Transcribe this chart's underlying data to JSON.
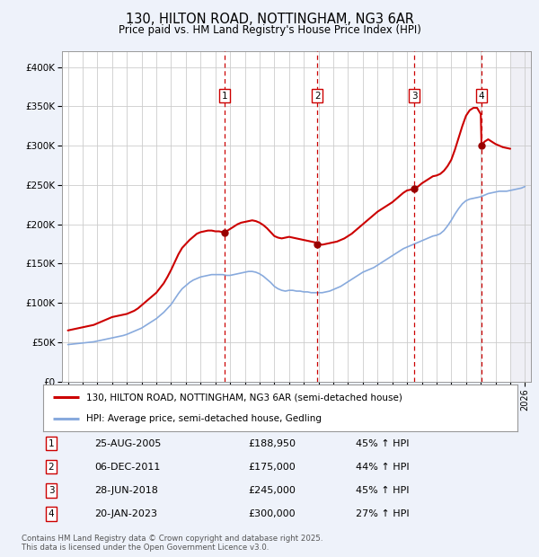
{
  "title": "130, HILTON ROAD, NOTTINGHAM, NG3 6AR",
  "subtitle": "Price paid vs. HM Land Registry's House Price Index (HPI)",
  "legend_line1": "130, HILTON ROAD, NOTTINGHAM, NG3 6AR (semi-detached house)",
  "legend_line2": "HPI: Average price, semi-detached house, Gedling",
  "footer_line1": "Contains HM Land Registry data © Crown copyright and database right 2025.",
  "footer_line2": "This data is licensed under the Open Government Licence v3.0.",
  "xlim": [
    1994.6,
    2026.4
  ],
  "ylim": [
    0,
    420000
  ],
  "yticks": [
    0,
    50000,
    100000,
    150000,
    200000,
    250000,
    300000,
    350000,
    400000
  ],
  "ytick_labels": [
    "£0",
    "£50K",
    "£100K",
    "£150K",
    "£200K",
    "£250K",
    "£300K",
    "£350K",
    "£400K"
  ],
  "background_color": "#eef2fa",
  "plot_bg_color": "#ffffff",
  "grid_color": "#cccccc",
  "transactions": [
    {
      "num": 1,
      "date": "25-AUG-2005",
      "price": "£188,950",
      "change": "45% ↑ HPI",
      "year": 2005.65
    },
    {
      "num": 2,
      "date": "06-DEC-2011",
      "price": "£175,000",
      "change": "44% ↑ HPI",
      "year": 2011.92
    },
    {
      "num": 3,
      "date": "28-JUN-2018",
      "price": "£245,000",
      "change": "45% ↑ HPI",
      "year": 2018.49
    },
    {
      "num": 4,
      "date": "20-JAN-2023",
      "price": "£300,000",
      "change": "27% ↑ HPI",
      "year": 2023.05
    }
  ],
  "red_line_color": "#cc0000",
  "blue_line_color": "#88aadd",
  "sale_dot_color": "#990000",
  "marker_box_color": "#cc0000",
  "vline_color": "#cc0000",
  "future_shade_start": 2025.0,
  "red_data_x": [
    1995.0,
    1995.25,
    1995.5,
    1995.75,
    1996.0,
    1996.25,
    1996.5,
    1996.75,
    1997.0,
    1997.25,
    1997.5,
    1997.75,
    1998.0,
    1998.25,
    1998.5,
    1998.75,
    1999.0,
    1999.25,
    1999.5,
    1999.75,
    2000.0,
    2000.25,
    2000.5,
    2000.75,
    2001.0,
    2001.25,
    2001.5,
    2001.75,
    2002.0,
    2002.25,
    2002.5,
    2002.75,
    2003.0,
    2003.25,
    2003.5,
    2003.75,
    2004.0,
    2004.25,
    2004.5,
    2004.75,
    2005.0,
    2005.25,
    2005.5,
    2005.65,
    2005.75,
    2006.0,
    2006.25,
    2006.5,
    2006.75,
    2007.0,
    2007.25,
    2007.5,
    2007.75,
    2008.0,
    2008.25,
    2008.5,
    2008.75,
    2009.0,
    2009.25,
    2009.5,
    2009.75,
    2010.0,
    2010.25,
    2010.5,
    2010.75,
    2011.0,
    2011.25,
    2011.5,
    2011.75,
    2011.92,
    2012.0,
    2012.25,
    2012.5,
    2012.75,
    2013.0,
    2013.25,
    2013.5,
    2013.75,
    2014.0,
    2014.25,
    2014.5,
    2014.75,
    2015.0,
    2015.25,
    2015.5,
    2015.75,
    2016.0,
    2016.25,
    2016.5,
    2016.75,
    2017.0,
    2017.25,
    2017.5,
    2017.75,
    2018.0,
    2018.25,
    2018.49,
    2018.5,
    2018.75,
    2019.0,
    2019.25,
    2019.5,
    2019.75,
    2020.0,
    2020.25,
    2020.5,
    2020.75,
    2021.0,
    2021.25,
    2021.5,
    2021.75,
    2022.0,
    2022.25,
    2022.5,
    2022.75,
    2023.0,
    2023.05,
    2023.25,
    2023.5,
    2023.75,
    2024.0,
    2024.25,
    2024.5,
    2024.75,
    2025.0
  ],
  "red_data_y": [
    65000,
    66000,
    67000,
    68000,
    69000,
    70000,
    71000,
    72000,
    74000,
    76000,
    78000,
    80000,
    82000,
    83000,
    84000,
    85000,
    86000,
    88000,
    90000,
    93000,
    97000,
    101000,
    105000,
    109000,
    113000,
    119000,
    125000,
    133000,
    142000,
    152000,
    162000,
    170000,
    175000,
    180000,
    184000,
    188000,
    190000,
    191000,
    192000,
    192000,
    191000,
    191000,
    190000,
    188950,
    191000,
    194000,
    197000,
    200000,
    202000,
    203000,
    204000,
    205000,
    204000,
    202000,
    199000,
    195000,
    190000,
    185000,
    183000,
    182000,
    183000,
    184000,
    183000,
    182000,
    181000,
    180000,
    179000,
    178000,
    177000,
    175000,
    175000,
    174000,
    175000,
    176000,
    177000,
    178000,
    180000,
    182000,
    185000,
    188000,
    192000,
    196000,
    200000,
    204000,
    208000,
    212000,
    216000,
    219000,
    222000,
    225000,
    228000,
    232000,
    236000,
    240000,
    243000,
    244000,
    245000,
    245500,
    248000,
    252000,
    255000,
    258000,
    261000,
    262000,
    264000,
    268000,
    274000,
    282000,
    295000,
    310000,
    325000,
    338000,
    345000,
    348000,
    348000,
    340000,
    300000,
    305000,
    308000,
    305000,
    302000,
    300000,
    298000,
    297000,
    296000
  ],
  "blue_data_x": [
    1995.0,
    1995.25,
    1995.5,
    1995.75,
    1996.0,
    1996.25,
    1996.5,
    1996.75,
    1997.0,
    1997.25,
    1997.5,
    1997.75,
    1998.0,
    1998.25,
    1998.5,
    1998.75,
    1999.0,
    1999.25,
    1999.5,
    1999.75,
    2000.0,
    2000.25,
    2000.5,
    2000.75,
    2001.0,
    2001.25,
    2001.5,
    2001.75,
    2002.0,
    2002.25,
    2002.5,
    2002.75,
    2003.0,
    2003.25,
    2003.5,
    2003.75,
    2004.0,
    2004.25,
    2004.5,
    2004.75,
    2005.0,
    2005.25,
    2005.5,
    2005.75,
    2006.0,
    2006.25,
    2006.5,
    2006.75,
    2007.0,
    2007.25,
    2007.5,
    2007.75,
    2008.0,
    2008.25,
    2008.5,
    2008.75,
    2009.0,
    2009.25,
    2009.5,
    2009.75,
    2010.0,
    2010.25,
    2010.5,
    2010.75,
    2011.0,
    2011.25,
    2011.5,
    2011.75,
    2012.0,
    2012.25,
    2012.5,
    2012.75,
    2013.0,
    2013.25,
    2013.5,
    2013.75,
    2014.0,
    2014.25,
    2014.5,
    2014.75,
    2015.0,
    2015.25,
    2015.5,
    2015.75,
    2016.0,
    2016.25,
    2016.5,
    2016.75,
    2017.0,
    2017.25,
    2017.5,
    2017.75,
    2018.0,
    2018.25,
    2018.5,
    2018.75,
    2019.0,
    2019.25,
    2019.5,
    2019.75,
    2020.0,
    2020.25,
    2020.5,
    2020.75,
    2021.0,
    2021.25,
    2021.5,
    2021.75,
    2022.0,
    2022.25,
    2022.5,
    2022.75,
    2023.0,
    2023.25,
    2023.5,
    2023.75,
    2024.0,
    2024.25,
    2024.5,
    2024.75,
    2025.0,
    2025.25,
    2025.5,
    2025.75,
    2026.0
  ],
  "blue_data_y": [
    47000,
    47500,
    48000,
    48500,
    49000,
    49500,
    50000,
    50500,
    51500,
    52500,
    53500,
    54500,
    55500,
    56500,
    57500,
    58500,
    60000,
    62000,
    64000,
    66000,
    68000,
    71000,
    74000,
    77000,
    80000,
    84000,
    88000,
    93000,
    98000,
    105000,
    112000,
    118000,
    122000,
    126000,
    129000,
    131000,
    133000,
    134000,
    135000,
    136000,
    136000,
    136000,
    136000,
    135000,
    135000,
    136000,
    137000,
    138000,
    139000,
    140000,
    140000,
    139000,
    137000,
    134000,
    130000,
    126000,
    121000,
    118000,
    116000,
    115000,
    116000,
    116000,
    115000,
    115000,
    114000,
    114000,
    113000,
    113000,
    113000,
    113000,
    114000,
    115000,
    117000,
    119000,
    121000,
    124000,
    127000,
    130000,
    133000,
    136000,
    139000,
    141000,
    143000,
    145000,
    148000,
    151000,
    154000,
    157000,
    160000,
    163000,
    166000,
    169000,
    171000,
    173000,
    175000,
    177000,
    179000,
    181000,
    183000,
    185000,
    186000,
    188000,
    192000,
    198000,
    205000,
    213000,
    220000,
    226000,
    230000,
    232000,
    233000,
    234000,
    235000,
    237000,
    239000,
    240000,
    241000,
    242000,
    242000,
    242000,
    243000,
    244000,
    245000,
    246000,
    248000
  ]
}
